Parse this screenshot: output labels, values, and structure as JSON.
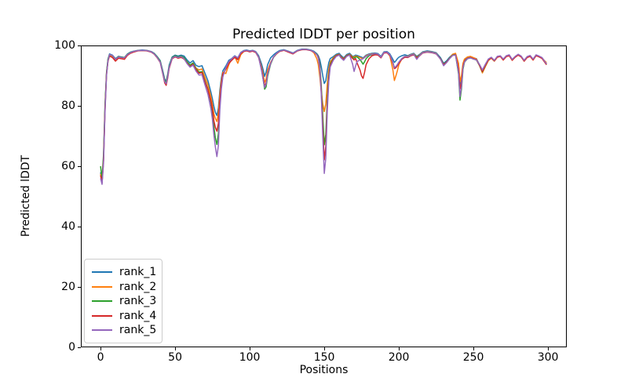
{
  "figure": {
    "background": "#ffffff"
  },
  "chart_data": {
    "type": "line",
    "title": "Predicted lDDT per position",
    "xlabel": "Positions",
    "ylabel": "Predicted lDDT",
    "xlim": [
      -13.2,
      312.6
    ],
    "ylim": [
      0,
      100
    ],
    "xticks": [
      0,
      50,
      100,
      150,
      200,
      250,
      300
    ],
    "yticks": [
      0,
      20,
      40,
      60,
      80,
      100
    ],
    "grid": false,
    "legend_position": "lower left",
    "x": [
      0,
      1,
      2,
      3,
      4,
      5,
      6,
      8,
      10,
      12,
      14,
      16,
      18,
      20,
      22,
      25,
      28,
      31,
      34,
      36,
      38,
      40,
      42,
      43,
      44,
      45,
      46,
      48,
      50,
      52,
      54,
      56,
      58,
      60,
      62,
      64,
      66,
      68,
      70,
      72,
      74,
      75,
      76,
      77,
      78,
      79,
      80,
      81,
      82,
      84,
      86,
      88,
      90,
      92,
      94,
      96,
      98,
      100,
      102,
      104,
      106,
      108,
      109,
      110,
      111,
      112,
      114,
      116,
      118,
      120,
      123,
      126,
      129,
      132,
      135,
      138,
      141,
      143,
      145,
      146,
      147,
      148,
      149,
      150,
      151,
      152,
      153,
      154,
      156,
      158,
      160,
      161,
      163,
      165,
      167,
      169,
      170,
      171,
      172,
      174,
      175,
      176,
      177,
      178,
      180,
      182,
      184,
      186,
      188,
      190,
      192,
      194,
      196,
      197,
      198,
      199,
      200,
      202,
      204,
      206,
      208,
      210,
      212,
      214,
      216,
      219,
      222,
      225,
      228,
      230,
      232,
      234,
      236,
      238,
      240,
      241,
      242,
      243,
      244,
      246,
      248,
      250,
      252,
      254,
      256,
      258,
      260,
      262,
      264,
      266,
      268,
      270,
      272,
      274,
      276,
      278,
      280,
      282,
      284,
      286,
      288,
      290,
      292,
      294,
      296,
      298,
      299
    ],
    "series": [
      {
        "name": "rank_1",
        "color": "#1f77b4",
        "values": [
          58,
          55,
          63,
          80,
          91,
          95.5,
          97.2,
          96.8,
          95.6,
          96.4,
          96.2,
          96,
          97.2,
          97.8,
          98.1,
          98.4,
          98.5,
          98.4,
          98,
          97.4,
          96.3,
          95,
          91,
          88.8,
          88.2,
          90.5,
          93.5,
          96.2,
          96.8,
          96.5,
          96.8,
          96.5,
          95.2,
          94.2,
          95,
          93.4,
          93,
          93.3,
          90.8,
          88.3,
          84.5,
          82.3,
          79.8,
          77.8,
          76.8,
          79.3,
          85.2,
          89.2,
          91.6,
          93.2,
          95.1,
          95.7,
          96.6,
          95.9,
          97.7,
          98.3,
          98.5,
          98.2,
          98.4,
          98,
          96.6,
          93.8,
          92,
          89.8,
          91.2,
          93.6,
          95.9,
          96.9,
          97.7,
          98.3,
          98.6,
          98.1,
          97.5,
          98.4,
          98.8,
          98.8,
          98.5,
          98.1,
          97.3,
          96.6,
          95.3,
          92.9,
          89.9,
          87.4,
          88.3,
          91.6,
          94.3,
          95.7,
          96.3,
          97.1,
          97.4,
          96.8,
          95.9,
          97,
          97.4,
          96.4,
          96.5,
          96.8,
          96.7,
          96.3,
          96.1,
          95.9,
          96.3,
          96.8,
          97.2,
          97.4,
          97.5,
          97.3,
          96.4,
          97.9,
          98,
          97.2,
          95.4,
          94.4,
          94.9,
          95.6,
          96.1,
          96.6,
          96.9,
          96.6,
          97.1,
          97.4,
          96.4,
          97.1,
          97.9,
          98.2,
          98,
          97.6,
          95.9,
          94.1,
          94.9,
          96.1,
          97,
          97.2,
          93.6,
          87,
          89.3,
          93.6,
          95.2,
          96,
          96.3,
          95.9,
          95.6,
          93.7,
          91.1,
          93.1,
          95.1,
          95.9,
          94.9,
          96.2,
          96.5,
          95.4,
          96.5,
          96.8,
          95.3,
          96.3,
          97,
          96.4,
          95,
          96.2,
          96.6,
          95.4,
          96.8,
          96.4,
          95.9,
          94.6,
          93.9
        ]
      },
      {
        "name": "rank_2",
        "color": "#ff7f0e",
        "values": [
          57.5,
          54.5,
          62,
          79,
          90.5,
          95,
          96.8,
          96.5,
          95.3,
          96.2,
          96,
          95.8,
          97,
          97.6,
          98,
          98.3,
          98.4,
          98.3,
          97.9,
          97.2,
          96,
          94.6,
          90.4,
          88.2,
          87.8,
          90,
          92.8,
          95.8,
          96.4,
          95.8,
          96,
          95.7,
          94.4,
          93.4,
          94.2,
          92.5,
          91.9,
          92.2,
          89.5,
          87,
          83,
          80.5,
          77.3,
          75.8,
          74.8,
          77.8,
          83.8,
          88.2,
          91.1,
          90.7,
          93.6,
          95.6,
          96.3,
          94.1,
          96.9,
          98,
          98.3,
          98,
          98.2,
          97.8,
          96.2,
          92.6,
          90.3,
          87.7,
          88.9,
          91.8,
          94.4,
          96.1,
          97.2,
          98,
          98.4,
          97.9,
          97.3,
          98.2,
          98.6,
          98.7,
          98.3,
          97.6,
          95.6,
          93.6,
          89.6,
          84.6,
          80.6,
          78.1,
          80.6,
          87.1,
          92.1,
          94.6,
          95.9,
          96.8,
          97.1,
          96.4,
          95.6,
          96.7,
          97.1,
          96.2,
          96.2,
          96.5,
          96.4,
          96,
          95.8,
          95.7,
          96.1,
          96.6,
          97,
          97.2,
          97.3,
          97.1,
          96.1,
          97.7,
          97.8,
          96.5,
          91.9,
          88.4,
          89.9,
          91.6,
          93.6,
          95.6,
          96.4,
          96.4,
          96.9,
          97.2,
          96.1,
          96.9,
          97.7,
          98,
          97.8,
          97.4,
          95.4,
          93.4,
          94.4,
          95.8,
          97.1,
          97.4,
          94.1,
          87.9,
          90.1,
          94.1,
          95.5,
          96.2,
          96.4,
          96,
          95.5,
          93.5,
          90.9,
          93,
          95,
          95.8,
          94.8,
          96.1,
          96.4,
          95.2,
          96.4,
          96.7,
          95.1,
          96.2,
          96.9,
          96.3,
          94.8,
          96.1,
          96.5,
          95.2,
          96.7,
          96.3,
          95.8,
          94.8,
          94.3
        ]
      },
      {
        "name": "rank_3",
        "color": "#2ca02c",
        "values": [
          60,
          56,
          64,
          80.5,
          91,
          95.5,
          97,
          96.6,
          95.5,
          96.3,
          96.1,
          96,
          97.1,
          97.7,
          98,
          98.3,
          98.4,
          98.3,
          97.9,
          97.3,
          96.2,
          94.8,
          90.6,
          88.4,
          87.8,
          90,
          93,
          96,
          96.6,
          96.2,
          96.5,
          96,
          94.6,
          93.5,
          94.2,
          92.3,
          91.2,
          91.3,
          88.3,
          85.5,
          81,
          78,
          73,
          69.3,
          67.2,
          70.8,
          80.8,
          86.6,
          90.1,
          92.6,
          94.6,
          95.4,
          96.4,
          95.6,
          97.5,
          98.2,
          98.4,
          98.1,
          98.3,
          97.9,
          96.2,
          91.8,
          88.8,
          85.5,
          86.3,
          89.8,
          93.8,
          96.1,
          97.3,
          98.1,
          98.5,
          98,
          97.4,
          98.3,
          98.7,
          98.7,
          98.4,
          97.9,
          97.1,
          96.2,
          93.6,
          86.6,
          76.6,
          67.1,
          70.6,
          82.1,
          90.1,
          93.9,
          95.6,
          96.7,
          97,
          96.3,
          95.5,
          96.6,
          97,
          96,
          95.8,
          96.2,
          96.2,
          95.3,
          94.6,
          93.8,
          94.6,
          95.6,
          96.6,
          97,
          97.2,
          97,
          96,
          97.6,
          97.7,
          96.8,
          94.3,
          92.6,
          92.9,
          93.6,
          94.4,
          95.6,
          96.3,
          96.2,
          96.8,
          97.1,
          96,
          96.8,
          97.6,
          97.9,
          97.7,
          97.3,
          95.6,
          93.8,
          94.6,
          95.8,
          96.8,
          96.9,
          90.6,
          81.9,
          85.6,
          92.1,
          94.5,
          95.6,
          95.9,
          95.5,
          95.2,
          93.4,
          91.3,
          93.3,
          95.2,
          95.9,
          94.9,
          96.2,
          96.5,
          95.3,
          96.4,
          96.7,
          95.2,
          96.2,
          96.9,
          96.3,
          94.9,
          96.1,
          96.5,
          95.3,
          96.7,
          96.3,
          95.8,
          94.4,
          93.7
        ]
      },
      {
        "name": "rank_4",
        "color": "#d62728",
        "values": [
          57,
          54.5,
          62,
          79,
          90.5,
          94.8,
          96.5,
          96,
          94.8,
          95.8,
          95.6,
          95.4,
          96.7,
          97.4,
          97.8,
          98.2,
          98.3,
          98.2,
          97.8,
          97.1,
          95.9,
          94.4,
          90,
          87.6,
          86.8,
          89.2,
          92.4,
          95.6,
          96.2,
          95.8,
          96.1,
          95.5,
          94.2,
          93,
          93.8,
          92,
          90.8,
          91,
          88,
          85.3,
          81.5,
          79,
          75,
          72.8,
          71.6,
          74.2,
          81.8,
          87.2,
          90.6,
          92.1,
          94.1,
          95.1,
          96.1,
          95.3,
          97.3,
          98,
          98.2,
          97.9,
          98.1,
          97.7,
          96,
          92,
          89.3,
          86.6,
          87.6,
          90.6,
          94.1,
          96.2,
          97.3,
          98,
          98.4,
          97.8,
          97.2,
          98.2,
          98.6,
          98.6,
          98.3,
          97.8,
          96.9,
          96.1,
          92.9,
          84.9,
          72.6,
          62.1,
          66.6,
          80.1,
          89.1,
          93.4,
          95.4,
          96.6,
          96.9,
          96.2,
          95.4,
          96.5,
          96.9,
          95.7,
          95.2,
          95.7,
          94.2,
          91.8,
          89.9,
          89.1,
          91.1,
          93.6,
          95.6,
          96.6,
          96.9,
          96.8,
          95.9,
          97.5,
          97.6,
          96.7,
          94.1,
          92.3,
          92.6,
          93.3,
          94.1,
          95.4,
          96.1,
          96,
          96.6,
          96.9,
          95.9,
          96.6,
          97.5,
          97.8,
          97.6,
          97.2,
          95.5,
          93.6,
          94.5,
          95.7,
          96.7,
          96.9,
          92.1,
          85.6,
          87.8,
          93.1,
          94.8,
          95.7,
          96,
          95.6,
          95.3,
          93.5,
          91.4,
          93.4,
          95.2,
          95.9,
          94.9,
          96.1,
          96.4,
          95.2,
          96.3,
          96.6,
          95.1,
          96.1,
          96.8,
          96.2,
          94.8,
          96,
          96.4,
          95.2,
          96.6,
          96.2,
          95.7,
          94.3,
          93.6
        ]
      },
      {
        "name": "rank_5",
        "color": "#9467bd",
        "values": [
          56,
          54,
          61,
          78,
          90,
          95,
          97,
          96.7,
          95.4,
          96.2,
          96,
          95.9,
          97,
          97.6,
          98,
          98.3,
          98.4,
          98.3,
          97.9,
          97.2,
          96,
          94.5,
          90.2,
          88,
          87.3,
          89.6,
          92.7,
          95.8,
          96.4,
          96,
          96.3,
          95.6,
          94,
          92.8,
          93.5,
          91.5,
          90.2,
          90.3,
          87,
          83.8,
          79,
          75.5,
          70.3,
          66.3,
          63.2,
          66.8,
          78.8,
          85.7,
          89.6,
          92.7,
          94.7,
          95.6,
          96.5,
          95.9,
          97.6,
          98.2,
          98.4,
          98.1,
          98.3,
          97.9,
          96.1,
          91.5,
          88.8,
          86,
          87.2,
          90.3,
          94,
          96.2,
          97.4,
          98.1,
          98.5,
          98,
          97.4,
          98.3,
          98.7,
          98.7,
          98.4,
          97.9,
          96.9,
          95.7,
          92.3,
          83.6,
          69.6,
          57.6,
          62.6,
          78.1,
          88.1,
          92.9,
          95.1,
          96.4,
          96.8,
          96,
          95.1,
          96.4,
          96.8,
          93.8,
          91.4,
          93.2,
          94.7,
          95.2,
          95.4,
          95.6,
          96,
          96.4,
          96.9,
          97.1,
          97.3,
          97.1,
          96.1,
          97.7,
          97.8,
          96.9,
          94.4,
          92.7,
          93,
          93.7,
          94.5,
          95.7,
          96.4,
          96.2,
          96.8,
          97.1,
          95.4,
          96.7,
          97.6,
          97.9,
          97.7,
          97.3,
          95.4,
          93.3,
          94.3,
          95.6,
          96.7,
          96.8,
          91.1,
          83.1,
          86.3,
          92.6,
          94.6,
          95.6,
          95.9,
          95.5,
          95.2,
          93.8,
          91.9,
          93.8,
          95.5,
          96.1,
          95.1,
          96.4,
          96.6,
          95.5,
          96.6,
          96.9,
          95.4,
          96.4,
          97.1,
          96.5,
          95.1,
          96.3,
          96.7,
          95.5,
          96.9,
          96.5,
          96,
          94.6,
          93.9
        ]
      }
    ]
  }
}
